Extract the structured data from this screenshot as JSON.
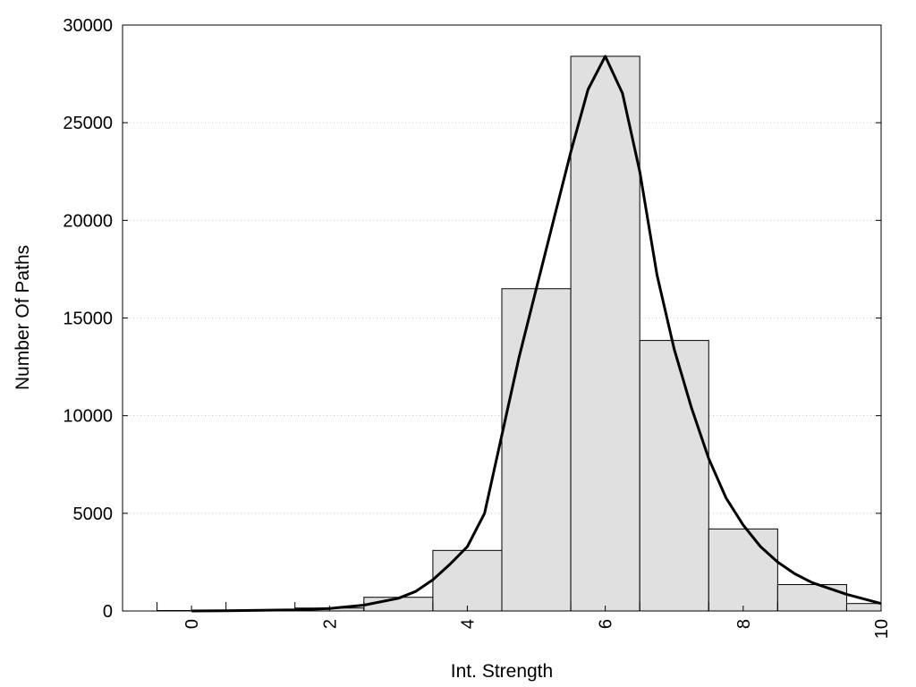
{
  "chart_data": {
    "type": "bar",
    "title": "",
    "xlabel": "Int. Strength",
    "ylabel": "Number Of Paths",
    "xlim": [
      -1,
      10
    ],
    "ylim": [
      0,
      30000
    ],
    "x_ticks": [
      0,
      2,
      4,
      6,
      8,
      10
    ],
    "y_ticks": [
      0,
      5000,
      10000,
      15000,
      20000,
      25000,
      30000
    ],
    "grid": "horizontal-dotted",
    "bars": [
      {
        "x": 0,
        "value": 0
      },
      {
        "x": 1,
        "value": 30
      },
      {
        "x": 2,
        "value": 150
      },
      {
        "x": 3,
        "value": 700
      },
      {
        "x": 4,
        "value": 3100
      },
      {
        "x": 5,
        "value": 16500
      },
      {
        "x": 6,
        "value": 28400
      },
      {
        "x": 7,
        "value": 13850
      },
      {
        "x": 8,
        "value": 4200
      },
      {
        "x": 9,
        "value": 1350
      },
      {
        "x": 10,
        "value": 380
      }
    ],
    "fit_curve": {
      "x": [
        0,
        0.5,
        1,
        1.5,
        2,
        2.5,
        3,
        3.25,
        3.5,
        3.75,
        4,
        4.25,
        4.5,
        4.75,
        5,
        5.25,
        5.5,
        5.75,
        6,
        6.25,
        6.5,
        6.75,
        7,
        7.25,
        7.5,
        7.75,
        8,
        8.25,
        8.5,
        8.75,
        9,
        9.5,
        10
      ],
      "y": [
        0,
        10,
        30,
        60,
        130,
        300,
        650,
        1000,
        1600,
        2400,
        3300,
        5000,
        9000,
        13000,
        16500,
        20000,
        23500,
        26700,
        28400,
        26500,
        22500,
        17200,
        13400,
        10400,
        7800,
        5800,
        4400,
        3300,
        2500,
        1900,
        1450,
        850,
        380
      ]
    }
  }
}
